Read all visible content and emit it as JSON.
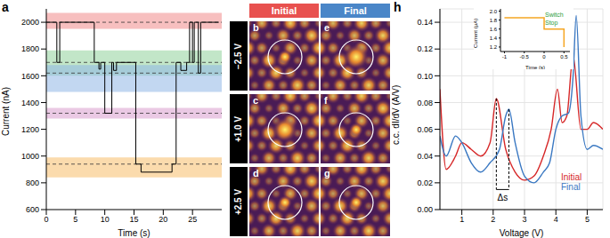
{
  "chart_data": [
    {
      "type": "line",
      "title": "a",
      "x_label": "Time (s)",
      "y_label": "Current (nA)",
      "x": [
        0,
        1.8,
        2.3,
        8.2,
        9.0,
        9.3,
        10.0,
        11.2,
        11.5,
        12.0,
        15.3,
        16.2,
        21.5,
        22.2,
        23.0,
        24.0,
        24.5,
        25.0,
        25.3,
        26.0,
        26.4,
        29.5
      ],
      "values": [
        2000,
        1700,
        2000,
        1700,
        1650,
        1700,
        1320,
        1700,
        1640,
        1700,
        940,
        880,
        940,
        1700,
        1640,
        1700,
        2000,
        1700,
        2000,
        1620,
        2000,
        2000
      ],
      "color": "#000000",
      "line_style": "step",
      "xlim": [
        0,
        30
      ],
      "xticks": [
        0,
        5,
        10,
        15,
        20,
        25
      ],
      "ylim": [
        600,
        2100
      ],
      "yticks": [
        600,
        800,
        1000,
        1200,
        1400,
        1600,
        1800,
        2000
      ],
      "bands": [
        {
          "range": [
            1950,
            2070
          ],
          "color": "#f08a8a"
        },
        {
          "range": [
            1600,
            1790
          ],
          "color": "#8fd19a"
        },
        {
          "range": [
            1480,
            1680
          ],
          "color": "#8fb6e6"
        },
        {
          "range": [
            1280,
            1360
          ],
          "color": "#d99ccd"
        },
        {
          "range": [
            840,
            990
          ],
          "color": "#f7bd6a"
        }
      ],
      "reference_lines": [
        2000,
        1700,
        1620,
        1320,
        940
      ],
      "grid": false
    },
    {
      "type": "line",
      "title": "h",
      "x_label": "Voltage (V)",
      "y_label": "c.c. dI/dV (A/V)",
      "series": [
        {
          "name": "Initial",
          "color": "#d62728",
          "x": [
            0.3,
            0.5,
            0.8,
            1.0,
            1.3,
            1.6,
            1.9,
            2.1,
            2.4,
            2.7,
            3.0,
            3.3,
            3.6,
            3.85,
            4.05,
            4.2,
            4.35,
            4.55,
            4.8,
            5.0,
            5.2,
            5.5
          ],
          "values": [
            0.09,
            0.03,
            0.04,
            0.05,
            0.045,
            0.04,
            0.05,
            0.083,
            0.045,
            0.028,
            0.022,
            0.025,
            0.04,
            0.06,
            0.09,
            0.065,
            0.07,
            0.115,
            0.06,
            0.06,
            0.065,
            0.06
          ]
        },
        {
          "name": "Final",
          "color": "#3a78c2",
          "x": [
            0.3,
            0.5,
            0.8,
            1.0,
            1.3,
            1.6,
            1.9,
            2.2,
            2.4,
            2.5,
            2.7,
            3.0,
            3.3,
            3.6,
            3.8,
            4.0,
            4.2,
            4.4,
            4.55,
            4.65,
            4.8,
            5.0,
            5.2,
            5.5
          ],
          "values": [
            0.055,
            0.04,
            0.055,
            0.05,
            0.035,
            0.028,
            0.035,
            0.045,
            0.07,
            0.075,
            0.05,
            0.025,
            0.02,
            0.028,
            0.035,
            0.06,
            0.07,
            0.072,
            0.1,
            0.145,
            0.07,
            0.045,
            0.048,
            0.045
          ]
        }
      ],
      "xlim": [
        0.3,
        5.5
      ],
      "xticks": [
        1,
        2,
        3,
        4,
        5
      ],
      "ylim": [
        0,
        0.15
      ],
      "yticks": [
        {
          "value": 0,
          "label": "0.00"
        },
        0.02,
        0.04,
        0.06,
        0.08,
        {
          "value": 0.1,
          "label": "0.10"
        },
        0.12,
        0.14
      ],
      "grid": true,
      "annotations": [
        {
          "text": "Δs",
          "x1": 2.1,
          "x2": 2.5,
          "y1": 0.083,
          "y2": 0.075,
          "y": 0.015
        }
      ]
    },
    {
      "type": "line",
      "x_label": "Time (s)",
      "y_label": "Current (μA)",
      "x": [
        -1,
        0,
        0,
        0.5,
        0.5
      ],
      "values": [
        1.85,
        1.85,
        1.6,
        1.6,
        1.2
      ],
      "color": "#f5a623",
      "xlim": [
        -1.1,
        0.65
      ],
      "xticks": [
        -1,
        -0.5,
        0,
        0.5
      ],
      "ylim": [
        1.1,
        2.05
      ],
      "yticks": [
        1.2,
        1.4,
        1.6,
        1.8,
        {
          "value": 2,
          "label": "2.0"
        }
      ],
      "annotations": [
        {
          "text": "Switch",
          "color": "#2e9e3e"
        },
        {
          "text": "Stop",
          "color": "#2e9e3e"
        }
      ]
    }
  ],
  "images": {
    "columns": [
      {
        "label": "Initial",
        "color": "#e8514f"
      },
      {
        "label": "Final",
        "color": "#4a86c8"
      }
    ],
    "rows": [
      "−2.5 V",
      "+1.0 V",
      "+2.5 V"
    ],
    "panel_labels": [
      [
        "b",
        "e"
      ],
      [
        "c",
        "f"
      ],
      [
        "d",
        "g"
      ]
    ]
  }
}
